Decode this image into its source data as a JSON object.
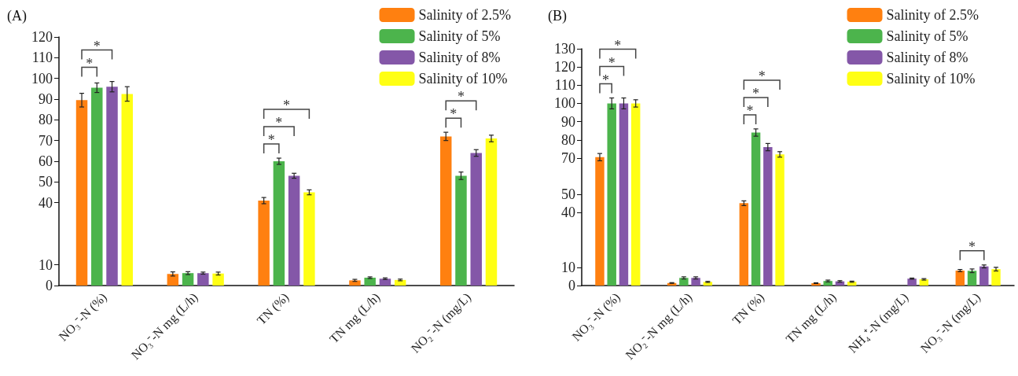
{
  "chart_data": [
    {
      "type": "bar",
      "title": "(A)",
      "categories": [
        "NO₃⁻-N (%)",
        "NO₃⁻-N mg (L/h)",
        "TN (%)",
        "TN mg (L/h)",
        "NO₂⁻-N (mg/L)"
      ],
      "legend": "top right",
      "ylim": [
        0,
        120
      ],
      "yticks": [
        0,
        10,
        40,
        50,
        60,
        70,
        80,
        90,
        100,
        110,
        120
      ],
      "series": [
        {
          "name": "Salinity of 2.5%",
          "color": "#ff8010",
          "values": [
            89.5,
            5.6,
            41,
            2.5,
            72
          ],
          "errors": [
            3.3,
            1,
            1.5,
            0.5,
            2
          ]
        },
        {
          "name": "Salinity of 5%",
          "color": "#4cb44c",
          "values": [
            95.5,
            6,
            60,
            3.8,
            53
          ],
          "errors": [
            2.3,
            0.7,
            1.5,
            0.4,
            1.8
          ]
        },
        {
          "name": "Salinity of 8%",
          "color": "#8457a8",
          "values": [
            96,
            6,
            53,
            3.3,
            64
          ],
          "errors": [
            2.5,
            0.5,
            1.2,
            0.4,
            1.6
          ]
        },
        {
          "name": "Salinity of 10%",
          "color": "#ffff14",
          "values": [
            92.5,
            5.8,
            45,
            2.7,
            71
          ],
          "errors": [
            3.5,
            0.7,
            1.2,
            0.4,
            1.6
          ]
        }
      ],
      "annotations": [
        "*",
        "*",
        "*",
        "*",
        "*",
        "*",
        "*"
      ]
    },
    {
      "type": "bar",
      "title": "(B)",
      "categories": [
        "NO₃⁻-N (%)",
        "NO₂⁻-N mg (L/h)",
        "TN (%)",
        "TN mg (L/h)",
        "NH₄⁺-N (mg/L)",
        "NO₃⁻-N (mg/L)"
      ],
      "legend": "top right",
      "ylim": [
        0,
        130
      ],
      "yticks": [
        0,
        10,
        40,
        50,
        70,
        80,
        90,
        100,
        110,
        120,
        130
      ],
      "series": [
        {
          "name": "Salinity of 2.5%",
          "color": "#ff8010",
          "values": [
            70.5,
            1.4,
            45.2,
            1.3,
            0,
            8.2
          ],
          "errors": [
            2,
            0.2,
            1.3,
            0.2,
            null,
            0.6
          ]
        },
        {
          "name": "Salinity of 5%",
          "color": "#4cb44c",
          "values": [
            100,
            4.2,
            84,
            2.5,
            null,
            8.1
          ],
          "errors": [
            3,
            0.6,
            2,
            0.5,
            null,
            1
          ]
        },
        {
          "name": "Salinity of 8%",
          "color": "#8457a8",
          "values": [
            100,
            4.2,
            76,
            2.3,
            3.8,
            10.5
          ],
          "errors": [
            3,
            0.6,
            2,
            0.4,
            0.3,
            0.8
          ]
        },
        {
          "name": "Salinity of 10%",
          "color": "#ffff14",
          "values": [
            100,
            2.0,
            72,
            2.1,
            3.4,
            9
          ],
          "errors": [
            2,
            0.3,
            1.5,
            0.3,
            0.4,
            1
          ]
        }
      ],
      "annotations": [
        "*",
        "*",
        "*",
        "*",
        "*",
        "*",
        "*"
      ]
    }
  ]
}
